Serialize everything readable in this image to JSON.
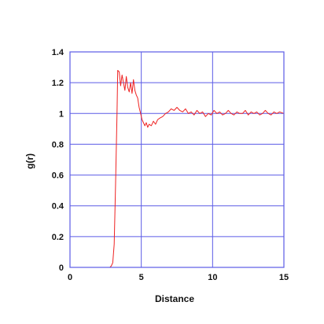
{
  "chart_data": {
    "type": "line",
    "title": "",
    "xlabel": "Distance",
    "ylabel": "g(r)",
    "xlim": [
      0,
      15
    ],
    "ylim": [
      0,
      1.4
    ],
    "x_ticks": [
      "0",
      "5",
      "10",
      "15"
    ],
    "y_ticks": [
      "0",
      "0.2",
      "0.4",
      "0.6",
      "0.8",
      "1",
      "1.2",
      "1.4"
    ],
    "grid": true,
    "legend": "none",
    "colors": {
      "axes": "#5b5be6",
      "grid": "#5b5be6",
      "series": "#ee2222"
    },
    "series": [
      {
        "x": [
          0,
          2.8,
          2.9,
          3.0,
          3.1,
          3.2,
          3.3,
          3.35,
          3.45,
          3.55,
          3.65,
          3.75,
          3.85,
          3.95,
          4.05,
          4.15,
          4.25,
          4.35,
          4.45,
          4.55,
          4.65,
          4.75,
          4.85,
          4.95,
          5.05,
          5.15,
          5.25,
          5.35,
          5.45,
          5.55,
          5.7,
          5.85,
          6.0,
          6.15,
          6.3,
          6.5,
          6.7,
          6.9,
          7.1,
          7.3,
          7.5,
          7.7,
          7.9,
          8.1,
          8.3,
          8.5,
          8.7,
          8.9,
          9.1,
          9.3,
          9.5,
          9.7,
          9.9,
          10.1,
          10.3,
          10.5,
          10.7,
          10.9,
          11.1,
          11.3,
          11.5,
          11.7,
          11.9,
          12.1,
          12.3,
          12.5,
          12.7,
          12.9,
          13.1,
          13.3,
          13.5,
          13.7,
          13.9,
          14.1,
          14.3,
          14.5,
          14.7,
          15.0
        ],
        "y": [
          0,
          0,
          0.01,
          0.03,
          0.15,
          0.55,
          1.0,
          1.28,
          1.27,
          1.18,
          1.25,
          1.2,
          1.15,
          1.24,
          1.17,
          1.14,
          1.2,
          1.13,
          1.22,
          1.15,
          1.12,
          1.1,
          1.04,
          1.0,
          0.96,
          0.94,
          0.92,
          0.94,
          0.91,
          0.93,
          0.92,
          0.95,
          0.93,
          0.96,
          0.97,
          0.98,
          1.0,
          1.01,
          1.03,
          1.02,
          1.04,
          1.02,
          1.01,
          1.03,
          1.0,
          1.01,
          0.99,
          1.02,
          1.0,
          1.01,
          0.98,
          1.0,
          0.99,
          1.02,
          1.0,
          1.01,
          0.99,
          1.0,
          1.02,
          1.0,
          0.99,
          1.01,
          1.0,
          1.0,
          1.02,
          0.99,
          1.01,
          1.0,
          1.01,
          0.99,
          1.0,
          1.02,
          1.0,
          0.99,
          1.01,
          1.0,
          1.01,
          1.0
        ]
      }
    ]
  }
}
